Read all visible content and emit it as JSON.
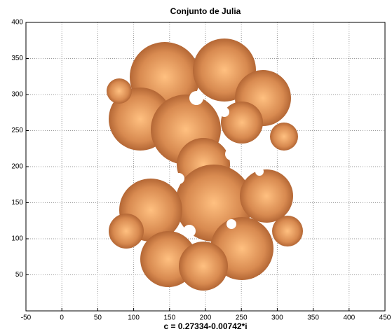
{
  "chart_data": {
    "type": "image",
    "title": "Conjunto de Julia",
    "xlabel": "c = 0.27334-0.00742*i",
    "xlim": [
      -50,
      450
    ],
    "ylim": [
      0,
      400
    ],
    "xticks": [
      -50,
      0,
      50,
      100,
      150,
      200,
      250,
      300,
      350,
      400,
      450
    ],
    "yticks": [
      50,
      100,
      150,
      200,
      250,
      300,
      350,
      400
    ],
    "grid": true
  }
}
